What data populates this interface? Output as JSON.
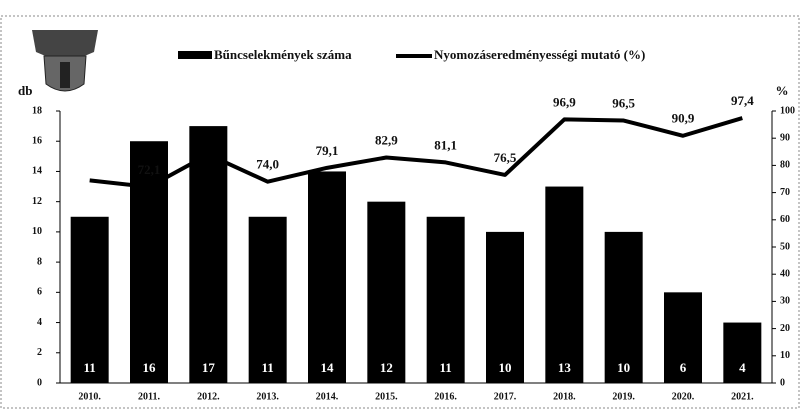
{
  "chart_data": {
    "type": "bar-line",
    "categories": [
      "2010.",
      "2011.",
      "2012.",
      "2013.",
      "2014.",
      "2015.",
      "2016.",
      "2017.",
      "2018.",
      "2019.",
      "2020.",
      "2021."
    ],
    "series": [
      {
        "name": "Bűncselekmények száma",
        "type": "bar",
        "color": "#000000",
        "values": [
          11,
          16,
          17,
          11,
          14,
          12,
          11,
          10,
          13,
          10,
          6,
          4
        ]
      },
      {
        "name": "Nyomozáseredményességi mutató (%)",
        "type": "line",
        "axis": "y2",
        "color": "#000000",
        "values": [
          74.5,
          72.1,
          84,
          74.0,
          79.1,
          82.9,
          81.1,
          76.5,
          96.9,
          96.5,
          90.9,
          97.4
        ],
        "value_labels": [
          null,
          "72,1",
          null,
          "74,0",
          "79,1",
          "82,9",
          "81,1",
          "76,5",
          "96,9",
          "96,5",
          "90,9",
          "97,4"
        ]
      }
    ],
    "y_label": "db",
    "y2_label": "%",
    "ylim": [
      0,
      18
    ],
    "yticks": [
      0,
      2,
      4,
      6,
      8,
      10,
      12,
      14,
      16,
      18
    ],
    "y2lim": [
      0,
      100
    ],
    "y2ticks": [
      0,
      10,
      20,
      30,
      40,
      50,
      60,
      70,
      80,
      90,
      100
    ]
  }
}
